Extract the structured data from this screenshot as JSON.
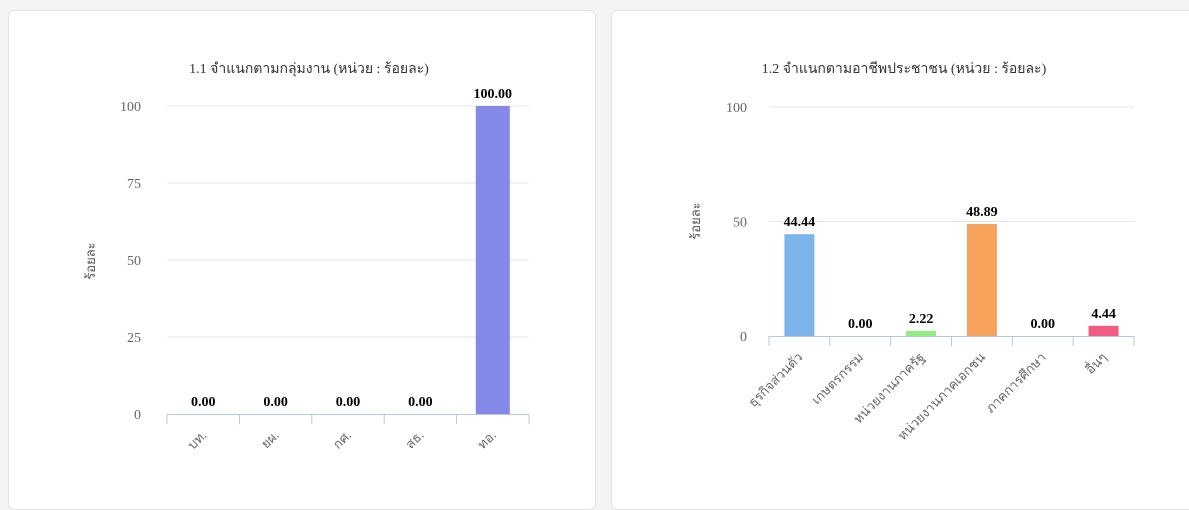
{
  "chart_data": [
    {
      "type": "bar",
      "title": "1.1 จำแนกตามกลุ่มงาน (หน่วย : ร้อยละ)",
      "ylabel": "ร้อยละ",
      "xlabel": "",
      "categories": [
        "บท.",
        "ยผ.",
        "กศ.",
        "สธ.",
        "ทอ."
      ],
      "values": [
        0,
        0,
        0,
        0,
        100
      ],
      "value_labels": [
        "0.00",
        "0.00",
        "0.00",
        "0.00",
        "100.00"
      ],
      "colors": [
        "#8488e8",
        "#8488e8",
        "#8488e8",
        "#8488e8",
        "#8488e8"
      ],
      "ylim": [
        0,
        100
      ],
      "yticks": [
        "0",
        "25",
        "50",
        "75",
        "100"
      ],
      "ytick_values": [
        0,
        25,
        50,
        75,
        100
      ],
      "grid": true,
      "legend": "none"
    },
    {
      "type": "bar",
      "title": "1.2 จำแนกตามอาชีพประชาชน (หน่วย : ร้อยละ)",
      "ylabel": "ร้อยละ",
      "xlabel": "",
      "categories": [
        "ธุรกิจส่วนตัว",
        "เกษตรกรรม",
        "หน่วยงานภาครัฐ",
        "หน่วยงานภาคเอกชน",
        "ภาคการศึกษา",
        "อื่นๆ"
      ],
      "values": [
        44.44,
        0,
        2.22,
        48.89,
        0,
        4.44
      ],
      "value_labels": [
        "44.44",
        "0.00",
        "2.22",
        "48.89",
        "0.00",
        "4.44"
      ],
      "colors": [
        "#7cb5ec",
        "#7cb5ec",
        "#90ed7d",
        "#f7a35c",
        "#8085e9",
        "#f15c80"
      ],
      "ylim": [
        0,
        100
      ],
      "yticks": [
        "0",
        "50",
        "100"
      ],
      "ytick_values": [
        0,
        50,
        100
      ],
      "grid": true,
      "legend": "none"
    }
  ]
}
